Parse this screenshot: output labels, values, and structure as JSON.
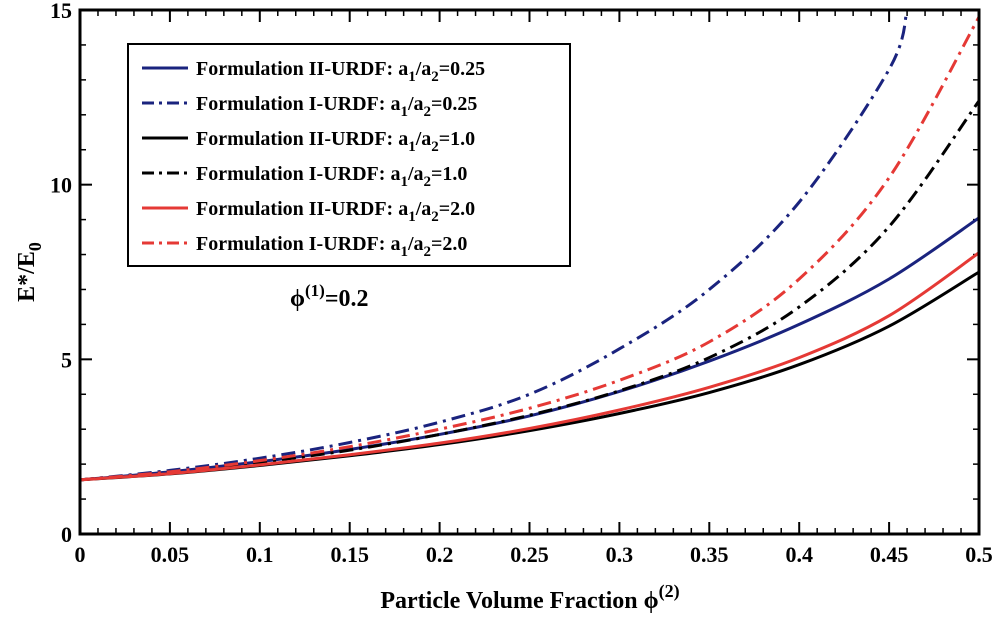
{
  "chart_data": {
    "type": "line",
    "title": "",
    "xlabel": "Particle Volume Fraction",
    "xlabel_symbol": "ϕ",
    "xlabel_sup": "(2)",
    "ylabel_main": "E*/E",
    "ylabel_sub": "0",
    "xlim": [
      0,
      0.5
    ],
    "ylim": [
      0,
      15
    ],
    "x_ticks": [
      "0",
      "0.05",
      "0.1",
      "0.15",
      "0.2",
      "0.25",
      "0.3",
      "0.35",
      "0.4",
      "0.45",
      "0.5"
    ],
    "y_ticks": [
      "0",
      "5",
      "10",
      "15"
    ],
    "annotation": {
      "symbol": "ϕ",
      "sup": "(1)",
      "text": "=0.2"
    },
    "series": [
      {
        "name": "Formulation II-URDF",
        "param": "a",
        "sub1": "1",
        "sub2": "2",
        "value": "=0.25",
        "color": "#1a237e",
        "dash": "solid",
        "x": [
          0,
          0.05,
          0.1,
          0.15,
          0.2,
          0.25,
          0.3,
          0.35,
          0.4,
          0.45,
          0.5
        ],
        "y": [
          1.55,
          1.78,
          2.07,
          2.42,
          2.85,
          3.38,
          4.08,
          4.95,
          6.0,
          7.3,
          9.05
        ]
      },
      {
        "name": "Formulation I-URDF",
        "param": "a",
        "sub1": "1",
        "sub2": "2",
        "value": "=0.25",
        "color": "#1a237e",
        "dash": "dashdot",
        "x": [
          0,
          0.05,
          0.1,
          0.15,
          0.2,
          0.25,
          0.3,
          0.35,
          0.4,
          0.45,
          0.46
        ],
        "y": [
          1.55,
          1.82,
          2.17,
          2.62,
          3.2,
          4.0,
          5.3,
          7.0,
          9.5,
          13.3,
          15.0
        ]
      },
      {
        "name": "Formulation II-URDF",
        "param": "a",
        "sub1": "1",
        "sub2": "2",
        "value": "=1.0",
        "color": "#000000",
        "dash": "solid",
        "x": [
          0,
          0.05,
          0.1,
          0.15,
          0.2,
          0.25,
          0.3,
          0.35,
          0.4,
          0.45,
          0.5
        ],
        "y": [
          1.55,
          1.72,
          1.96,
          2.24,
          2.56,
          2.96,
          3.45,
          4.05,
          4.85,
          5.95,
          7.5
        ]
      },
      {
        "name": "Formulation I-URDF",
        "param": "a",
        "sub1": "1",
        "sub2": "2",
        "value": "=1.0",
        "color": "#000000",
        "dash": "dashdot",
        "x": [
          0,
          0.05,
          0.1,
          0.15,
          0.2,
          0.25,
          0.3,
          0.35,
          0.4,
          0.45,
          0.5
        ],
        "y": [
          1.55,
          1.76,
          2.05,
          2.4,
          2.85,
          3.4,
          4.1,
          5.05,
          6.5,
          8.8,
          12.4
        ]
      },
      {
        "name": "Formulation II-URDF",
        "param": "a",
        "sub1": "1",
        "sub2": "2",
        "value": "=2.0",
        "color": "#e53935",
        "dash": "solid",
        "x": [
          0,
          0.05,
          0.1,
          0.15,
          0.2,
          0.25,
          0.3,
          0.35,
          0.4,
          0.45,
          0.5
        ],
        "y": [
          1.55,
          1.73,
          1.98,
          2.27,
          2.6,
          3.02,
          3.55,
          4.2,
          5.05,
          6.25,
          8.05
        ]
      },
      {
        "name": "Formulation I-URDF",
        "param": "a",
        "sub1": "1",
        "sub2": "2",
        "value": "=2.0",
        "color": "#e53935",
        "dash": "dashdot",
        "x": [
          0,
          0.05,
          0.1,
          0.15,
          0.2,
          0.25,
          0.3,
          0.35,
          0.4,
          0.45,
          0.5
        ],
        "y": [
          1.55,
          1.78,
          2.1,
          2.5,
          3.0,
          3.6,
          4.4,
          5.5,
          7.3,
          10.2,
          14.8
        ]
      }
    ]
  }
}
